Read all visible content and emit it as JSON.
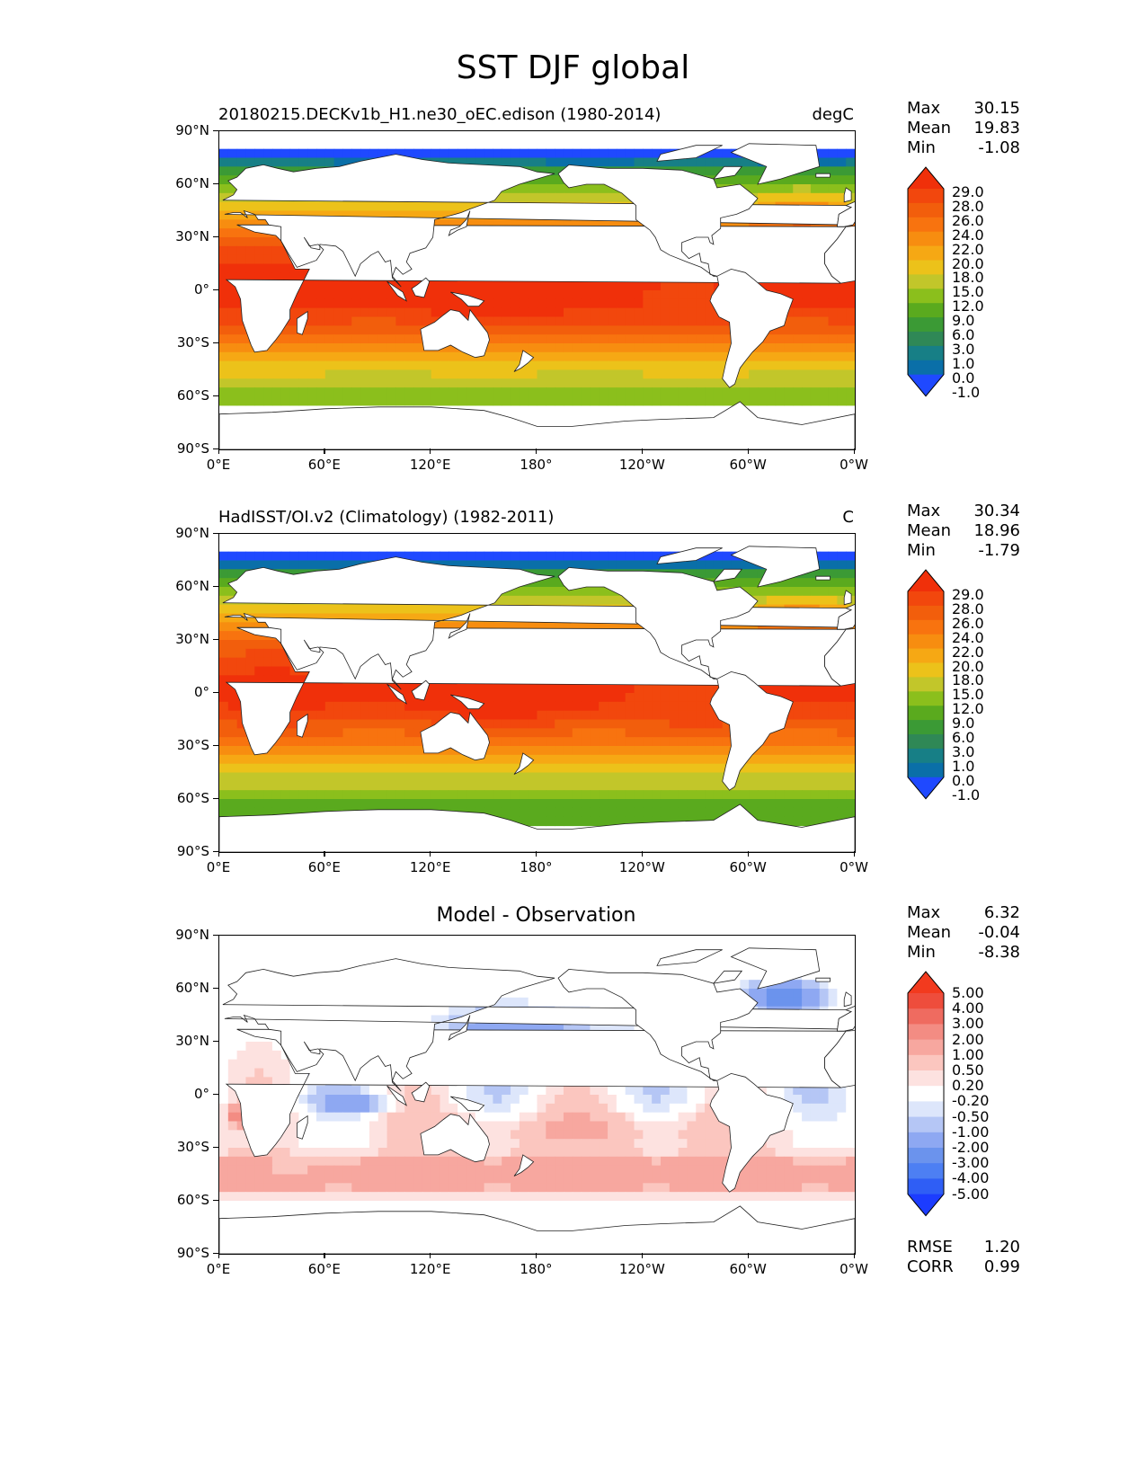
{
  "figure": {
    "title": "SST DJF global"
  },
  "colormaps": {
    "sst": [
      "#1f49ff",
      "#0a6fa8",
      "#177f86",
      "#2f8856",
      "#3b9a35",
      "#5aaa1e",
      "#8bbf1c",
      "#c2c62a",
      "#ecc21a",
      "#f6a814",
      "#f78d10",
      "#f8730f",
      "#f25e0c",
      "#f2470d",
      "#f0300a"
    ],
    "diff": [
      "#1c3cff",
      "#2f5ef5",
      "#4d7ff3",
      "#6b93ed",
      "#8ea8f2",
      "#b5c6f5",
      "#dde6fb",
      "#ffffff",
      "#fde2e0",
      "#fbc6bf",
      "#f7a79f",
      "#f38c83",
      "#ef6b60",
      "#ee4d3c",
      "#f23a1e"
    ]
  },
  "x_ticks": [
    "0°E",
    "60°E",
    "120°E",
    "180°",
    "120°W",
    "60°W",
    "0°W"
  ],
  "y_ticks": [
    "90°N",
    "60°N",
    "30°N",
    "0°",
    "30°S",
    "60°S",
    "90°S"
  ],
  "panels": [
    {
      "title_left": "20180215.DECKv1b_H1.ne30_oEC.edison (1980-2014)",
      "title_center": "",
      "units": "degC",
      "stats": {
        "max_label": "Max",
        "max": "30.15",
        "mean_label": "Mean",
        "mean": "19.83",
        "min_label": "Min",
        "min": "-1.08"
      },
      "colorbar_labels": [
        "29.0",
        "28.0",
        "26.0",
        "24.0",
        "22.0",
        "20.0",
        "18.0",
        "15.0",
        "12.0",
        "9.0",
        "6.0",
        "3.0",
        "1.0",
        "0.0",
        "-1.0"
      ],
      "field": "model"
    },
    {
      "title_left": "HadISST/OI.v2 (Climatology) (1982-2011)",
      "title_center": "",
      "units": "C",
      "stats": {
        "max_label": "Max",
        "max": "30.34",
        "mean_label": "Mean",
        "mean": "18.96",
        "min_label": "Min",
        "min": "-1.79"
      },
      "colorbar_labels": [
        "29.0",
        "28.0",
        "26.0",
        "24.0",
        "22.0",
        "20.0",
        "18.0",
        "15.0",
        "12.0",
        "9.0",
        "6.0",
        "3.0",
        "1.0",
        "0.0",
        "-1.0"
      ],
      "field": "obs"
    },
    {
      "title_left": "",
      "title_center": "Model - Observation",
      "units": "",
      "stats": {
        "max_label": "Max",
        "max": "6.32",
        "mean_label": "Mean",
        "mean": "-0.04",
        "min_label": "Min",
        "min": "-8.38"
      },
      "colorbar_labels": [
        "5.00",
        "4.00",
        "3.00",
        "2.00",
        "1.00",
        "0.50",
        "0.20",
        "-0.20",
        "-0.50",
        "-1.00",
        "-2.00",
        "-3.00",
        "-4.00",
        "-5.00"
      ],
      "field": "diff",
      "metrics": {
        "rmse_label": "RMSE",
        "rmse": "1.20",
        "corr_label": "CORR",
        "corr": "0.99"
      }
    }
  ],
  "chart_data": [
    {
      "type": "heatmap",
      "title": "20180215.DECKv1b_H1.ne30_oEC.edison (1980-2014)",
      "units": "degC",
      "xlim": [
        0,
        360
      ],
      "ylim": [
        -90,
        90
      ],
      "levels": [
        -1.0,
        0.0,
        1.0,
        3.0,
        6.0,
        9.0,
        12.0,
        15.0,
        18.0,
        20.0,
        22.0,
        24.0,
        26.0,
        28.0,
        29.0
      ],
      "max": 30.15,
      "mean": 19.83,
      "min": -1.08
    },
    {
      "type": "heatmap",
      "title": "HadISST/OI.v2 (Climatology) (1982-2011)",
      "units": "C",
      "xlim": [
        0,
        360
      ],
      "ylim": [
        -90,
        90
      ],
      "levels": [
        -1.0,
        0.0,
        1.0,
        3.0,
        6.0,
        9.0,
        12.0,
        15.0,
        18.0,
        20.0,
        22.0,
        24.0,
        26.0,
        28.0,
        29.0
      ],
      "max": 30.34,
      "mean": 18.96,
      "min": -1.79
    },
    {
      "type": "heatmap",
      "title": "Model - Observation",
      "xlim": [
        0,
        360
      ],
      "ylim": [
        -90,
        90
      ],
      "levels": [
        -5.0,
        -4.0,
        -3.0,
        -2.0,
        -1.0,
        -0.5,
        -0.2,
        0.2,
        0.5,
        1.0,
        2.0,
        3.0,
        4.0,
        5.0
      ],
      "max": 6.32,
      "mean": -0.04,
      "min": -8.38,
      "rmse": 1.2,
      "corr": 0.99
    }
  ]
}
